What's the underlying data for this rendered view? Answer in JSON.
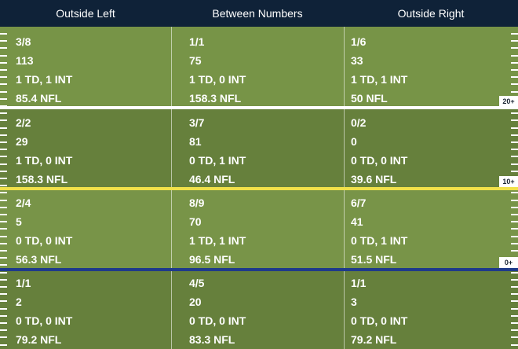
{
  "columns": [
    "Outside Left",
    "Between Numbers",
    "Outside Right"
  ],
  "zones": [
    {
      "yard_label": "20+",
      "divider_color": "#ffffff",
      "cells": [
        {
          "comp": "3/8",
          "yards": "113",
          "td_int": "1 TD, 1 INT",
          "rating": "85.4 NFL"
        },
        {
          "comp": "1/1",
          "yards": "75",
          "td_int": "1 TD, 0 INT",
          "rating": "158.3 NFL"
        },
        {
          "comp": "1/6",
          "yards": "33",
          "td_int": "1 TD, 1 INT",
          "rating": "50 NFL"
        }
      ]
    },
    {
      "yard_label": "10+",
      "divider_color": "#f1e14a",
      "cells": [
        {
          "comp": "2/2",
          "yards": "29",
          "td_int": "1 TD, 0 INT",
          "rating": "158.3 NFL"
        },
        {
          "comp": "3/7",
          "yards": "81",
          "td_int": "0 TD, 1 INT",
          "rating": "46.4 NFL"
        },
        {
          "comp": "0/2",
          "yards": "0",
          "td_int": "0 TD, 0 INT",
          "rating": "39.6 NFL"
        }
      ]
    },
    {
      "yard_label": "0+",
      "divider_color": "#1e3a8a",
      "cells": [
        {
          "comp": "2/4",
          "yards": "5",
          "td_int": "0 TD, 0 INT",
          "rating": "56.3 NFL"
        },
        {
          "comp": "8/9",
          "yards": "70",
          "td_int": "1 TD, 1 INT",
          "rating": "96.5 NFL"
        },
        {
          "comp": "6/7",
          "yards": "41",
          "td_int": "0 TD, 1 INT",
          "rating": "51.5 NFL"
        }
      ]
    },
    {
      "yard_label": "",
      "divider_color": "",
      "cells": [
        {
          "comp": "1/1",
          "yards": "2",
          "td_int": "0 TD, 0 INT",
          "rating": "79.2 NFL"
        },
        {
          "comp": "4/5",
          "yards": "20",
          "td_int": "0 TD, 0 INT",
          "rating": "83.3 NFL"
        },
        {
          "comp": "1/1",
          "yards": "3",
          "td_int": "0 TD, 0 INT",
          "rating": "79.2 NFL"
        }
      ]
    }
  ]
}
